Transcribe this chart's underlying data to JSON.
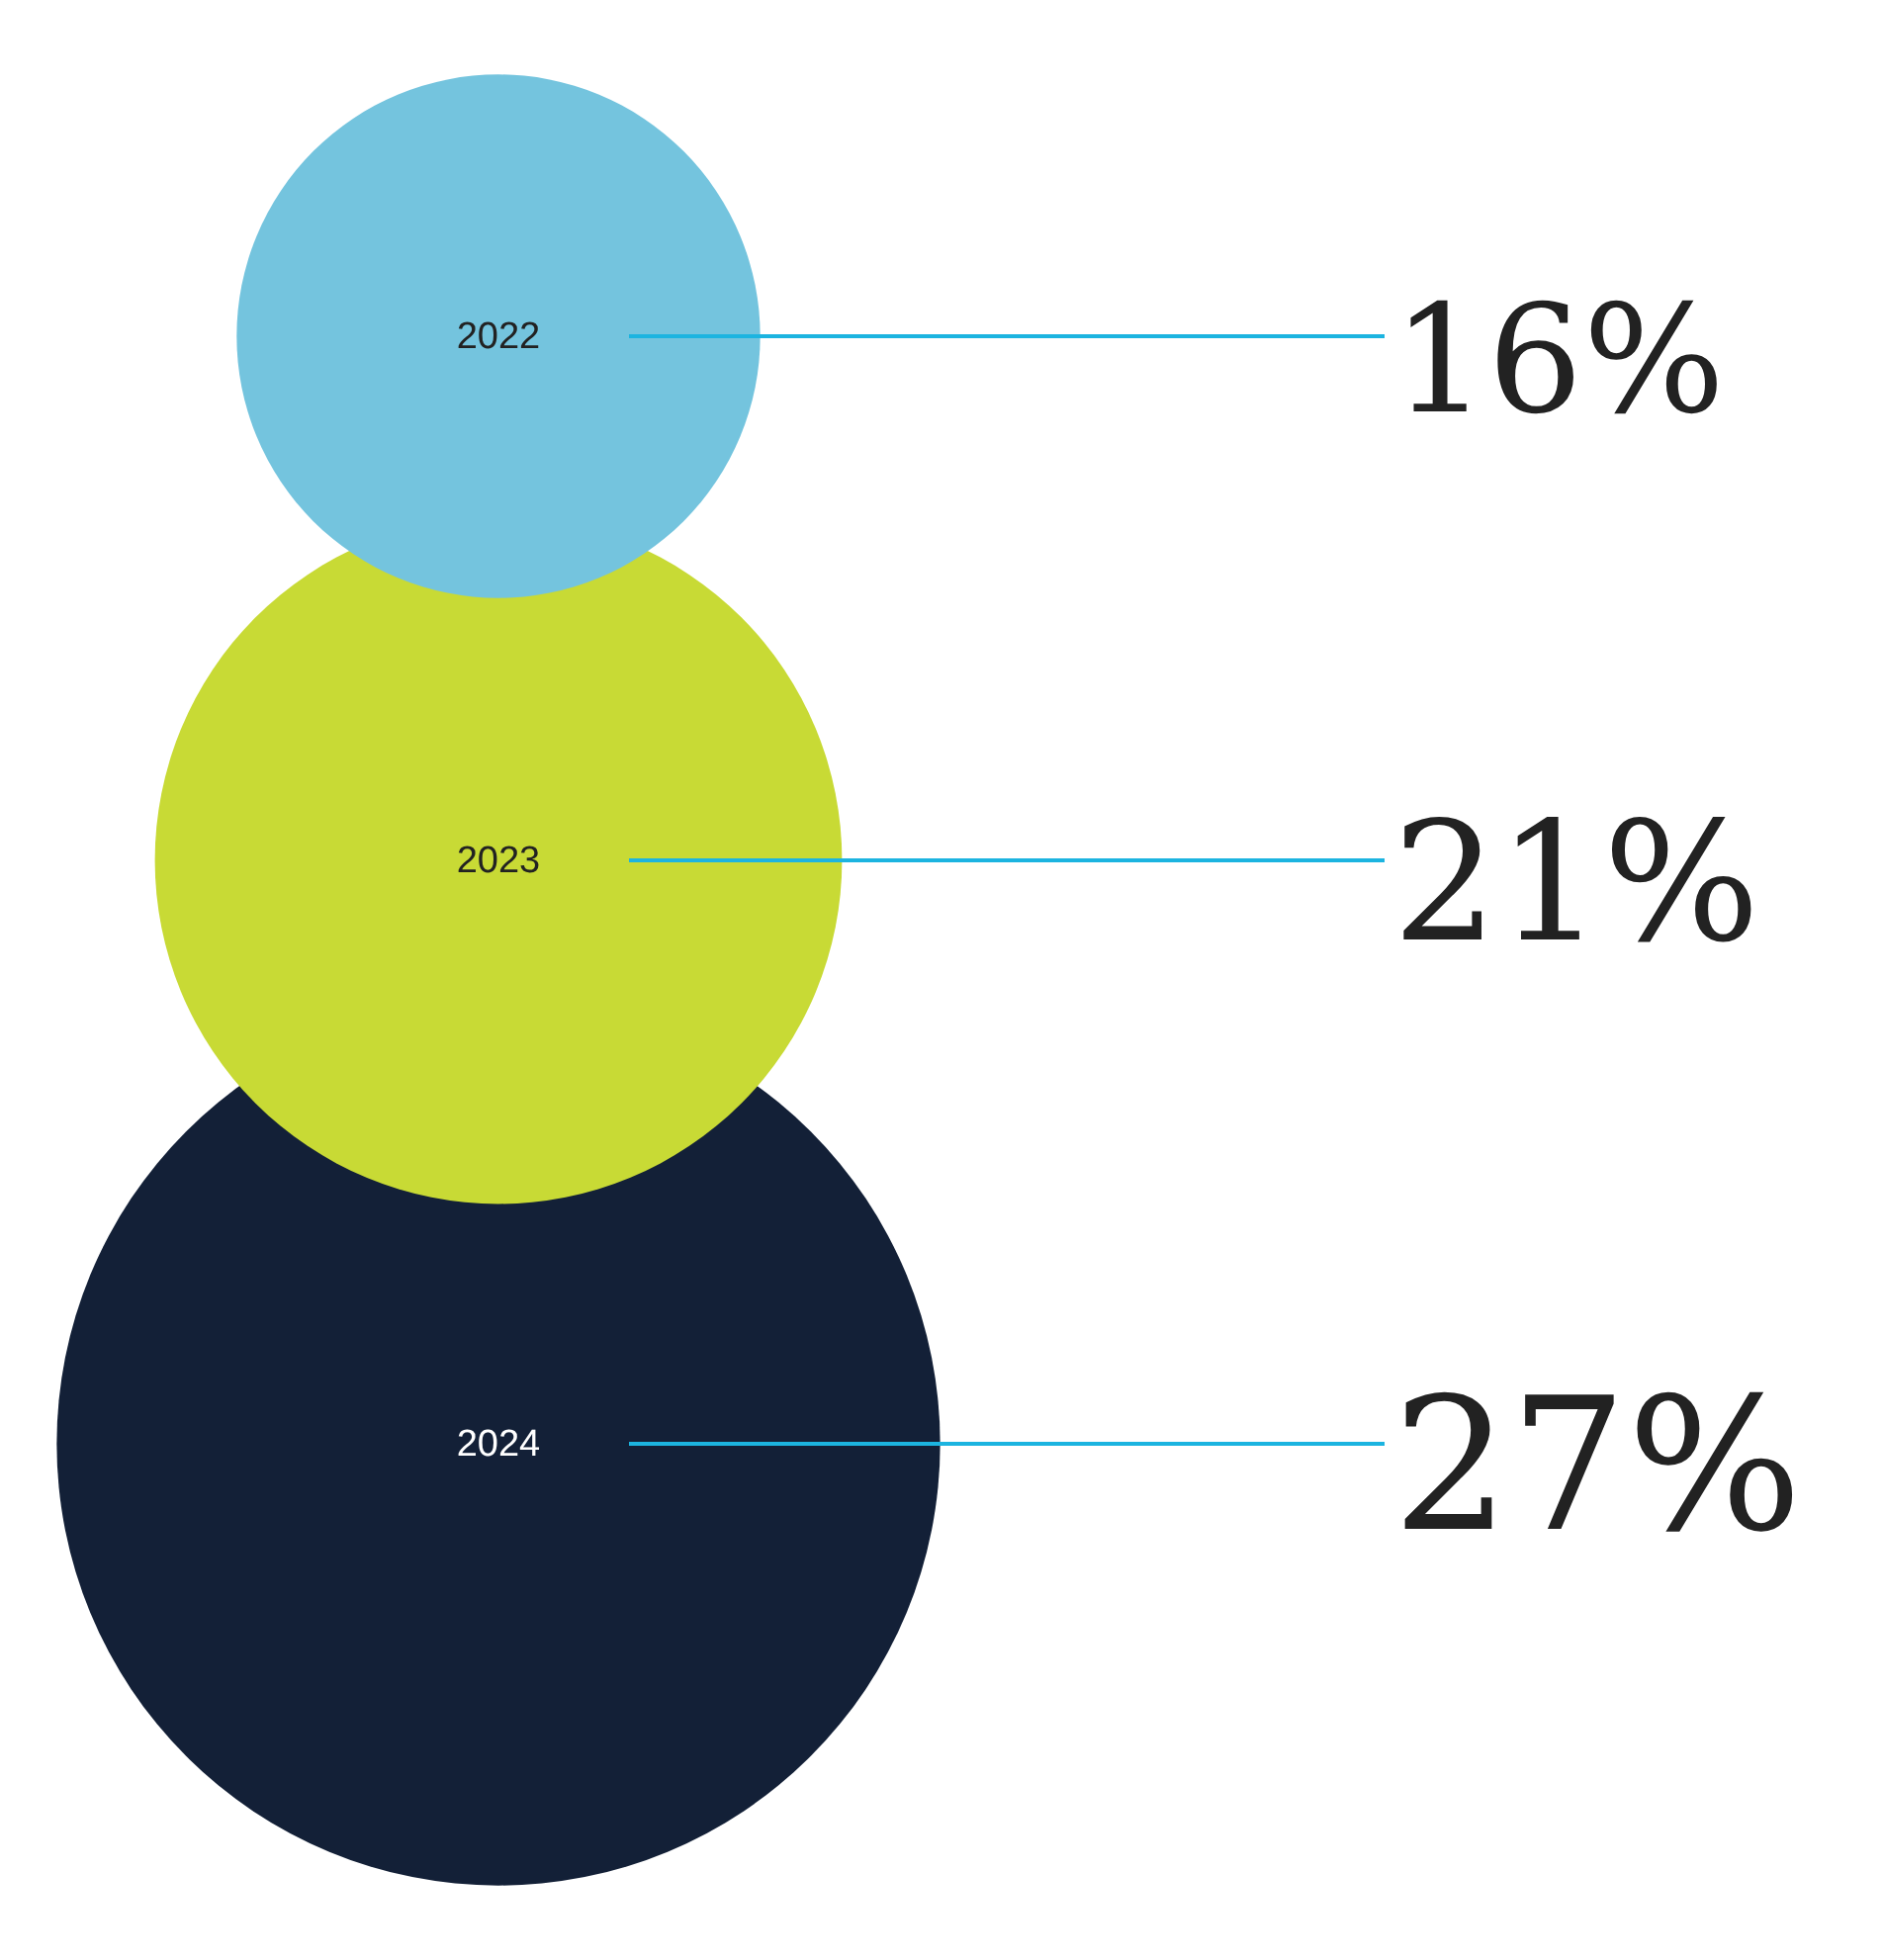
{
  "chart_data": {
    "type": "other",
    "categories": [
      "2022",
      "2023",
      "2024"
    ],
    "values": [
      16,
      21,
      27
    ],
    "colors": [
      "#74c4de",
      "#c8da35",
      "#132037"
    ],
    "value_labels": [
      "16%",
      "21%",
      "27%"
    ]
  }
}
